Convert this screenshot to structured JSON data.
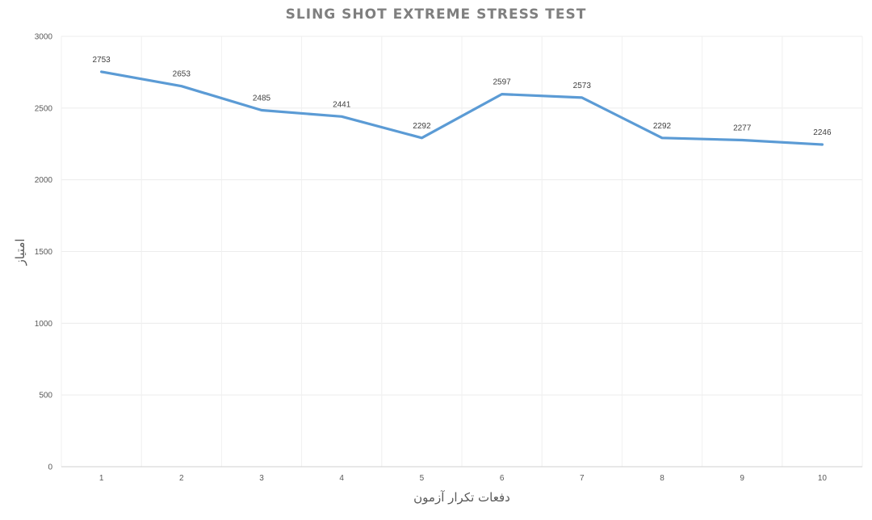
{
  "chart_data": {
    "type": "line",
    "title": "SLING SHOT EXTREME STRESS TEST",
    "xlabel": "دفعات تکرار آزمون",
    "ylabel": "امتیاز",
    "x": [
      1,
      2,
      3,
      4,
      5,
      6,
      7,
      8,
      9,
      10
    ],
    "series": [
      {
        "values": [
          2753,
          2653,
          2485,
          2441,
          2292,
          2597,
          2573,
          2292,
          2277,
          2246
        ]
      }
    ],
    "ylim": [
      0,
      3000
    ],
    "yticks": [
      0,
      500,
      1000,
      1500,
      2000,
      2500,
      3000
    ],
    "grid": true,
    "data_labels": true,
    "line_color": "#5b9bd5"
  }
}
